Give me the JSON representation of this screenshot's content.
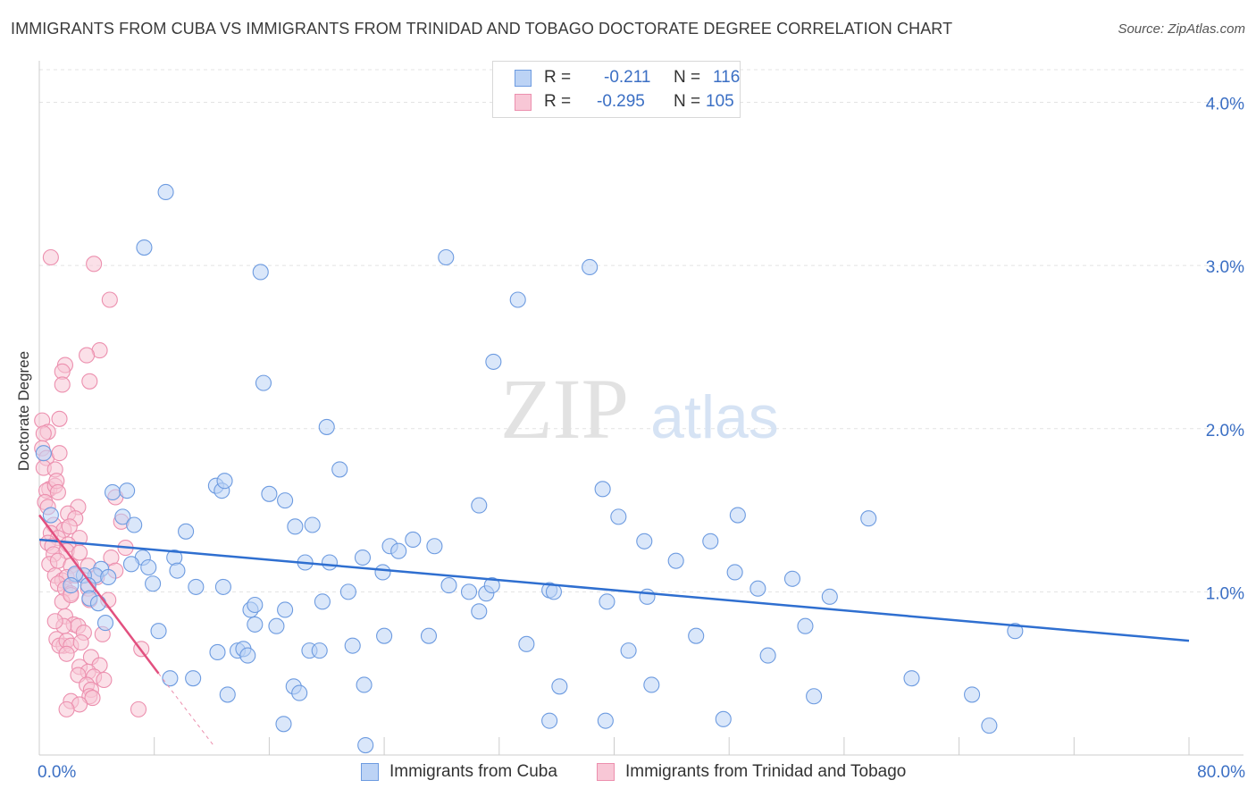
{
  "title": "IMMIGRANTS FROM CUBA VS IMMIGRANTS FROM TRINIDAD AND TOBAGO DOCTORATE DEGREE CORRELATION CHART",
  "source": "Source: ZipAtlas.com",
  "watermark": "ZIPatlas",
  "colors": {
    "cuba": "#6d9be0",
    "cuba_fill": "#bcd3f5",
    "cuba_line": "#2f6fd0",
    "tt": "#ec8fae",
    "tt_fill": "#f8c7d6",
    "tt_line": "#e2507f",
    "axis_label": "#3b6fc4"
  },
  "legend": {
    "rows": [
      {
        "r_label": "R =",
        "r_value": "-0.211",
        "n_label": "N =",
        "n_value": "116"
      },
      {
        "r_label": "R =",
        "r_value": "-0.295",
        "n_label": "N =",
        "n_value": "105"
      }
    ]
  },
  "bottom_legend": {
    "cuba": "Immigrants from Cuba",
    "tt": "Immigrants from Trinidad and Tobago"
  },
  "chart_data": {
    "type": "scatter",
    "title": "IMMIGRANTS FROM CUBA VS IMMIGRANTS FROM TRINIDAD AND TOBAGO DOCTORATE DEGREE CORRELATION CHART",
    "xlabel": "",
    "ylabel": "Doctorate Degree",
    "xlim": [
      0,
      80
    ],
    "ylim": [
      0,
      4.2
    ],
    "x_tick_labels": [
      "0.0%",
      "80.0%"
    ],
    "y_ticks": [
      1.0,
      2.0,
      3.0,
      4.0
    ],
    "y_tick_labels": [
      "1.0%",
      "2.0%",
      "3.0%",
      "4.0%"
    ],
    "grid": "horizontal dashed",
    "legend_position": "top-center",
    "series": [
      {
        "name": "Immigrants from Cuba",
        "r": -0.211,
        "n": 116,
        "trend": {
          "x": [
            0,
            80
          ],
          "y": [
            1.32,
            0.7
          ]
        },
        "points": [
          [
            8.8,
            3.45
          ],
          [
            7.3,
            3.11
          ],
          [
            15.4,
            2.96
          ],
          [
            28.3,
            3.05
          ],
          [
            38.3,
            2.99
          ],
          [
            33.3,
            2.79
          ],
          [
            31.6,
            2.41
          ],
          [
            15.6,
            2.28
          ],
          [
            20.0,
            2.01
          ],
          [
            20.9,
            1.75
          ],
          [
            12.3,
            1.65
          ],
          [
            12.7,
            1.62
          ],
          [
            12.9,
            1.68
          ],
          [
            5.1,
            1.61
          ],
          [
            6.1,
            1.62
          ],
          [
            16.0,
            1.6
          ],
          [
            17.1,
            1.56
          ],
          [
            30.6,
            1.53
          ],
          [
            39.2,
            1.63
          ],
          [
            40.3,
            1.46
          ],
          [
            48.6,
            1.47
          ],
          [
            57.7,
            1.45
          ],
          [
            5.8,
            1.46
          ],
          [
            6.6,
            1.41
          ],
          [
            10.2,
            1.37
          ],
          [
            17.8,
            1.4
          ],
          [
            19.0,
            1.41
          ],
          [
            26.0,
            1.32
          ],
          [
            24.4,
            1.28
          ],
          [
            25.0,
            1.25
          ],
          [
            27.5,
            1.28
          ],
          [
            22.5,
            1.21
          ],
          [
            20.2,
            1.18
          ],
          [
            18.5,
            1.18
          ],
          [
            42.1,
            1.31
          ],
          [
            46.7,
            1.31
          ],
          [
            44.3,
            1.19
          ],
          [
            7.2,
            1.21
          ],
          [
            6.4,
            1.17
          ],
          [
            9.4,
            1.21
          ],
          [
            7.6,
            1.15
          ],
          [
            4.3,
            1.14
          ],
          [
            3.9,
            1.1
          ],
          [
            4.8,
            1.09
          ],
          [
            9.6,
            1.13
          ],
          [
            3.1,
            1.1
          ],
          [
            2.5,
            1.11
          ],
          [
            2.2,
            1.04
          ],
          [
            3.4,
            1.04
          ],
          [
            7.9,
            1.05
          ],
          [
            10.9,
            1.03
          ],
          [
            12.8,
            1.03
          ],
          [
            21.5,
            1.0
          ],
          [
            23.9,
            1.12
          ],
          [
            28.5,
            1.04
          ],
          [
            29.9,
            1.0
          ],
          [
            31.1,
            0.99
          ],
          [
            31.5,
            1.04
          ],
          [
            35.5,
            1.01
          ],
          [
            35.8,
            1.0
          ],
          [
            39.5,
            0.94
          ],
          [
            42.3,
            0.97
          ],
          [
            48.4,
            1.12
          ],
          [
            50.0,
            1.02
          ],
          [
            52.4,
            1.08
          ],
          [
            55.0,
            0.97
          ],
          [
            3.5,
            0.96
          ],
          [
            4.1,
            0.93
          ],
          [
            14.7,
            0.89
          ],
          [
            15.0,
            0.92
          ],
          [
            17.1,
            0.89
          ],
          [
            19.7,
            0.94
          ],
          [
            30.6,
            0.88
          ],
          [
            4.6,
            0.81
          ],
          [
            8.3,
            0.76
          ],
          [
            15.0,
            0.8
          ],
          [
            16.5,
            0.79
          ],
          [
            13.8,
            0.64
          ],
          [
            14.2,
            0.65
          ],
          [
            12.4,
            0.63
          ],
          [
            14.5,
            0.61
          ],
          [
            18.8,
            0.64
          ],
          [
            19.5,
            0.64
          ],
          [
            21.8,
            0.67
          ],
          [
            24.0,
            0.73
          ],
          [
            27.1,
            0.73
          ],
          [
            33.9,
            0.68
          ],
          [
            41.0,
            0.64
          ],
          [
            45.7,
            0.73
          ],
          [
            50.7,
            0.61
          ],
          [
            53.3,
            0.79
          ],
          [
            67.9,
            0.76
          ],
          [
            9.1,
            0.47
          ],
          [
            10.7,
            0.47
          ],
          [
            13.1,
            0.37
          ],
          [
            17.7,
            0.42
          ],
          [
            18.1,
            0.38
          ],
          [
            22.6,
            0.43
          ],
          [
            36.2,
            0.42
          ],
          [
            42.6,
            0.43
          ],
          [
            53.9,
            0.36
          ],
          [
            60.7,
            0.47
          ],
          [
            64.9,
            0.37
          ],
          [
            35.5,
            0.21
          ],
          [
            39.4,
            0.21
          ],
          [
            47.6,
            0.22
          ],
          [
            17.0,
            0.19
          ],
          [
            66.1,
            0.18
          ],
          [
            22.7,
            0.06
          ],
          [
            0.3,
            1.85
          ],
          [
            0.8,
            1.47
          ]
        ]
      },
      {
        "name": "Immigrants from Trinidad and Tobago",
        "r": -0.295,
        "n": 105,
        "trend": {
          "x": [
            0,
            8.3
          ],
          "y": [
            1.47,
            0.5
          ]
        },
        "trend_extension": {
          "x": [
            8.3,
            12.2
          ],
          "y": [
            0.5,
            0.05
          ]
        },
        "points": [
          [
            0.8,
            3.05
          ],
          [
            3.8,
            3.01
          ],
          [
            4.9,
            2.79
          ],
          [
            1.8,
            2.39
          ],
          [
            4.2,
            2.48
          ],
          [
            3.3,
            2.45
          ],
          [
            1.6,
            2.35
          ],
          [
            1.6,
            2.27
          ],
          [
            3.5,
            2.29
          ],
          [
            1.4,
            2.06
          ],
          [
            0.2,
            2.05
          ],
          [
            0.6,
            1.98
          ],
          [
            0.3,
            1.97
          ],
          [
            0.2,
            1.88
          ],
          [
            0.5,
            1.82
          ],
          [
            1.4,
            1.85
          ],
          [
            0.3,
            1.76
          ],
          [
            1.1,
            1.75
          ],
          [
            0.7,
            1.63
          ],
          [
            0.5,
            1.62
          ],
          [
            1.1,
            1.65
          ],
          [
            1.2,
            1.68
          ],
          [
            1.3,
            1.61
          ],
          [
            0.4,
            1.55
          ],
          [
            0.6,
            1.52
          ],
          [
            2.7,
            1.52
          ],
          [
            5.3,
            1.58
          ],
          [
            2.0,
            1.48
          ],
          [
            1.0,
            1.41
          ],
          [
            2.5,
            1.45
          ],
          [
            1.7,
            1.38
          ],
          [
            2.1,
            1.4
          ],
          [
            5.7,
            1.43
          ],
          [
            0.8,
            1.36
          ],
          [
            1.3,
            1.33
          ],
          [
            2.8,
            1.33
          ],
          [
            0.6,
            1.3
          ],
          [
            0.9,
            1.28
          ],
          [
            2.0,
            1.29
          ],
          [
            6.0,
            1.27
          ],
          [
            1.0,
            1.23
          ],
          [
            1.9,
            1.25
          ],
          [
            2.8,
            1.24
          ],
          [
            5.0,
            1.21
          ],
          [
            0.7,
            1.17
          ],
          [
            1.3,
            1.19
          ],
          [
            2.2,
            1.16
          ],
          [
            3.4,
            1.16
          ],
          [
            1.1,
            1.1
          ],
          [
            1.6,
            1.07
          ],
          [
            1.9,
            1.09
          ],
          [
            2.5,
            1.1
          ],
          [
            4.0,
            1.09
          ],
          [
            5.3,
            1.13
          ],
          [
            1.3,
            1.05
          ],
          [
            1.8,
            1.02
          ],
          [
            2.2,
            0.99
          ],
          [
            3.4,
            1.02
          ],
          [
            1.6,
            0.94
          ],
          [
            2.2,
            0.98
          ],
          [
            3.5,
            0.95
          ],
          [
            4.8,
            0.95
          ],
          [
            1.8,
            0.85
          ],
          [
            2.4,
            0.8
          ],
          [
            2.7,
            0.79
          ],
          [
            1.7,
            0.79
          ],
          [
            1.1,
            0.82
          ],
          [
            3.1,
            0.75
          ],
          [
            4.4,
            0.74
          ],
          [
            1.2,
            0.71
          ],
          [
            1.7,
            0.67
          ],
          [
            1.4,
            0.67
          ],
          [
            1.9,
            0.7
          ],
          [
            2.2,
            0.67
          ],
          [
            2.9,
            0.69
          ],
          [
            1.9,
            0.62
          ],
          [
            3.6,
            0.6
          ],
          [
            7.1,
            0.65
          ],
          [
            2.8,
            0.54
          ],
          [
            4.2,
            0.55
          ],
          [
            3.4,
            0.51
          ],
          [
            2.7,
            0.49
          ],
          [
            3.8,
            0.48
          ],
          [
            4.5,
            0.46
          ],
          [
            3.3,
            0.43
          ],
          [
            3.6,
            0.4
          ],
          [
            3.5,
            0.36
          ],
          [
            3.7,
            0.35
          ],
          [
            2.2,
            0.33
          ],
          [
            2.8,
            0.31
          ],
          [
            1.9,
            0.28
          ],
          [
            6.9,
            0.28
          ]
        ]
      }
    ]
  }
}
